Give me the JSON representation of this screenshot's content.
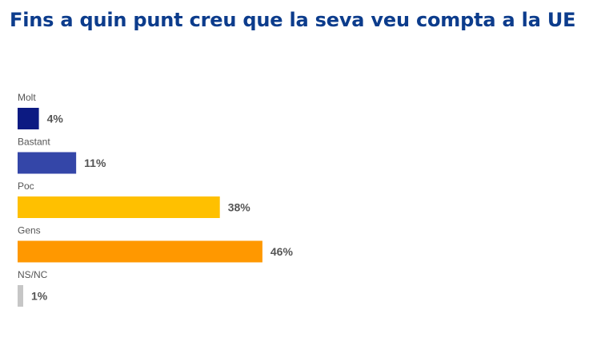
{
  "chart_data": {
    "type": "bar",
    "orientation": "horizontal",
    "title": "Fins a quin punt creu que la seva veu compta a la UE",
    "categories": [
      "Molt",
      "Bastant",
      "Poc",
      "Gens",
      "NS/NC"
    ],
    "values": [
      4,
      11,
      38,
      46,
      1
    ],
    "value_labels": [
      "4%",
      "11%",
      "38%",
      "46%",
      "1%"
    ],
    "bar_colors": [
      "#0c1a82",
      "#3446a8",
      "#ffc000",
      "#ff9800",
      "#c6c6c6"
    ],
    "xlim": [
      0,
      100
    ],
    "xlabel": "",
    "ylabel": "",
    "grid": false,
    "legend": "none"
  },
  "colors": {
    "title": "#0c3c8c",
    "label_text": "#555555",
    "background": "#ffffff"
  }
}
